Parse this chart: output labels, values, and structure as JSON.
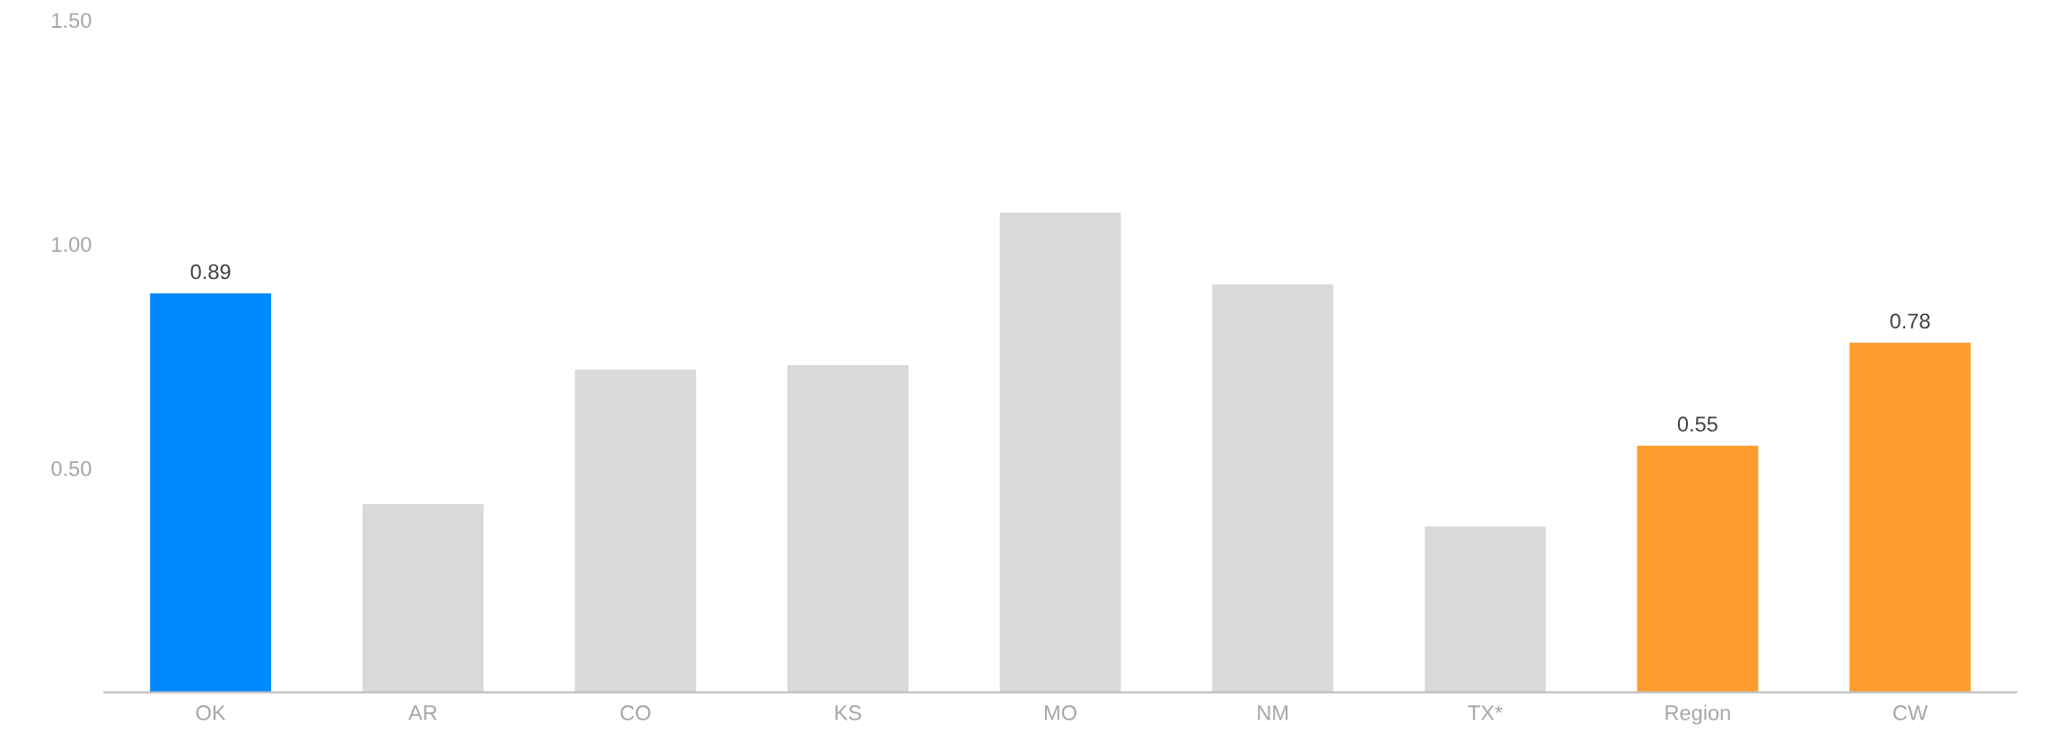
{
  "chart_data": {
    "type": "bar",
    "categories": [
      "OK",
      "AR",
      "CO",
      "KS",
      "MO",
      "NM",
      "TX*",
      "Region",
      "CW"
    ],
    "values": [
      0.89,
      0.42,
      0.72,
      0.73,
      1.07,
      0.91,
      0.37,
      0.55,
      0.78
    ],
    "colors": [
      "#0088ff",
      "#d9d9d9",
      "#d9d9d9",
      "#d9d9d9",
      "#d9d9d9",
      "#d9d9d9",
      "#d9d9d9",
      "#ff9c2e",
      "#ff9c2e"
    ],
    "value_labels": [
      "0.89",
      null,
      null,
      null,
      null,
      null,
      null,
      "0.55",
      "0.78"
    ],
    "ylim": [
      0,
      1.5
    ],
    "yticks": [
      {
        "value": 0.5,
        "label": "0.50"
      },
      {
        "value": 1.0,
        "label": "1.00"
      },
      {
        "value": 1.5,
        "label": "1.50"
      }
    ],
    "grid": false,
    "legend": false
  }
}
